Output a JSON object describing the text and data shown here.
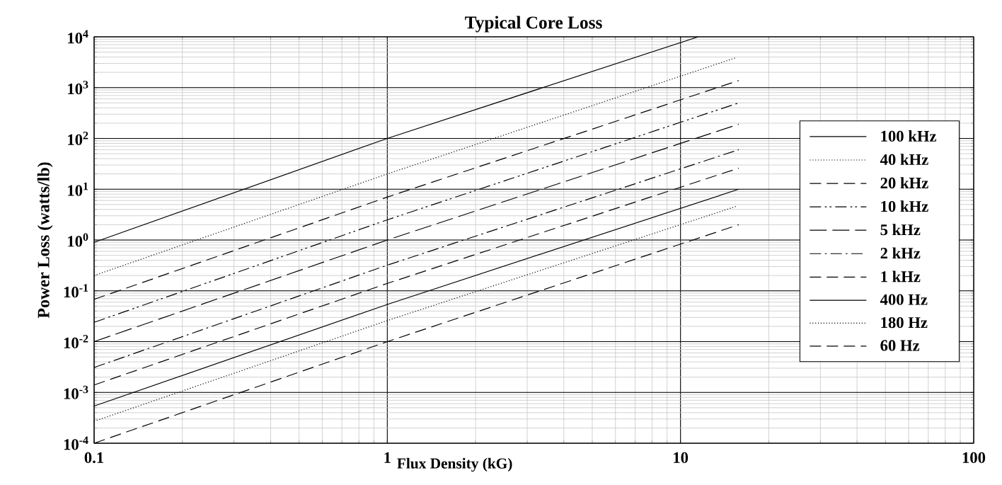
{
  "chart_data": {
    "type": "line",
    "title": "Typical Core Loss",
    "xlabel": "Flux Density (kG)",
    "ylabel": "Power Loss (watts/lb)",
    "log": "xy",
    "grid": true,
    "legend": "right",
    "marker": "none",
    "xlim": [
      0.1,
      100
    ],
    "ylim": [
      0.0001,
      10000
    ],
    "xticks": [
      0.1,
      1,
      10,
      100
    ],
    "yticks": [
      {
        "value": 0.0001,
        "label": "10$^{-4}$"
      },
      {
        "value": 0.001,
        "label": "10$^{-3}$"
      },
      {
        "value": 0.01,
        "label": "10$^{-2}$"
      },
      {
        "value": 0.1,
        "label": "10$^{-1}$"
      },
      {
        "value": 1,
        "label": "10$^{0}$"
      },
      {
        "value": 10,
        "label": "10$^{1}$"
      },
      {
        "value": 100,
        "label": "10$^{2}$"
      },
      {
        "value": 1000,
        "label": "10$^{3}$"
      },
      {
        "value": 10000,
        "label": "10$^{4}$"
      }
    ],
    "series": [
      {
        "name": "100 kHz",
        "color": "#000000",
        "line_style": "solid",
        "x": [
          0.1,
          1,
          11.5
        ],
        "values": [
          0.9,
          100,
          10000
        ]
      },
      {
        "name": "40 kHz",
        "color": "#000000",
        "line_style": "dotted",
        "x": [
          0.1,
          1,
          15.5
        ],
        "values": [
          0.2,
          20,
          3900
        ]
      },
      {
        "name": "20 kHz",
        "color": "#000000",
        "line_style": "dashed",
        "x": [
          0.1,
          1,
          15.8
        ],
        "values": [
          0.068,
          7,
          1380
        ]
      },
      {
        "name": "10 kHz",
        "color": "#000000",
        "line_style": "dashdotdot",
        "x": [
          0.1,
          1,
          15.8
        ],
        "values": [
          0.024,
          2.5,
          500
        ]
      },
      {
        "name": "5 kHz",
        "color": "#000000",
        "line_style": "longdashed",
        "x": [
          0.1,
          1,
          15.8
        ],
        "values": [
          0.01,
          1,
          190
        ]
      },
      {
        "name": "2 kHz",
        "color": "#000000",
        "line_style": "dashdot",
        "x": [
          0.1,
          1,
          15.8
        ],
        "values": [
          0.0031,
          0.32,
          60
        ]
      },
      {
        "name": "1 kHz",
        "color": "#000000",
        "line_style": "dashed",
        "x": [
          0.1,
          1,
          15.8
        ],
        "values": [
          0.0014,
          0.14,
          26
        ]
      },
      {
        "name": "400 Hz",
        "color": "#000000",
        "line_style": "solid",
        "x": [
          0.1,
          1,
          15.8
        ],
        "values": [
          0.00054,
          0.054,
          10
        ]
      },
      {
        "name": "180 Hz",
        "color": "#000000",
        "line_style": "dotted",
        "x": [
          0.1,
          1,
          15.5
        ],
        "values": [
          0.00027,
          0.026,
          4.6
        ]
      },
      {
        "name": "60 Hz",
        "color": "#000000",
        "line_style": "dashed",
        "x": [
          0.1,
          1,
          15.8
        ],
        "values": [
          0.0001,
          0.01,
          2.0
        ]
      }
    ]
  }
}
